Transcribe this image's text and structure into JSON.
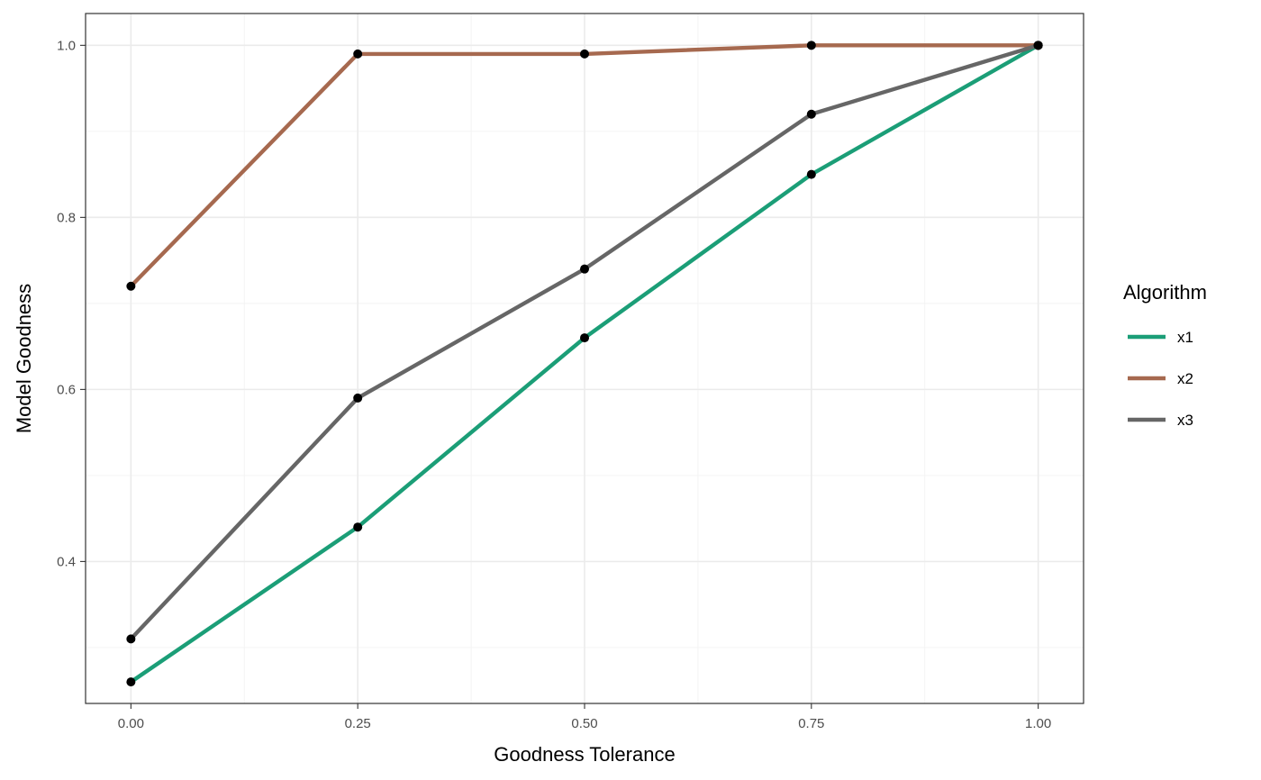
{
  "chart_data": {
    "type": "line",
    "title": "",
    "xlabel": "Goodness Tolerance",
    "ylabel": "Model Goodness",
    "x": [
      0,
      0.25,
      0.5,
      0.75,
      1
    ],
    "x_ticks": [
      "0.00",
      "0.25",
      "0.50",
      "0.75",
      "1.00"
    ],
    "y_ticks": [
      "0.4",
      "0.6",
      "0.8",
      "1.0"
    ],
    "xlim": [
      -0.05,
      1.05
    ],
    "ylim": [
      0.235,
      1.037
    ],
    "grid": true,
    "legend": {
      "title": "Algorithm",
      "position": "right"
    },
    "series": [
      {
        "name": "x1",
        "color": "#1b9e77",
        "values": [
          0.26,
          0.44,
          0.66,
          0.85,
          1.0
        ]
      },
      {
        "name": "x2",
        "color": "#a6694f",
        "values": [
          0.72,
          0.99,
          0.99,
          1.0,
          1.0
        ]
      },
      {
        "name": "x3",
        "color": "#666666",
        "values": [
          0.31,
          0.59,
          0.74,
          0.92,
          1.0
        ]
      }
    ],
    "point_color": "#000000"
  }
}
